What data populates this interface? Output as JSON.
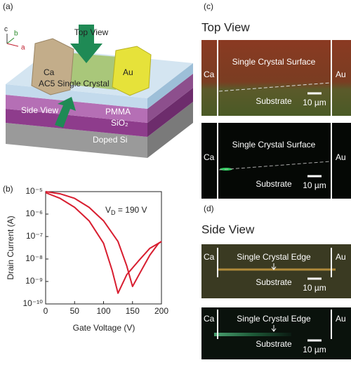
{
  "panel_a": {
    "label": "(a)",
    "axes": [
      "c",
      "b",
      "a"
    ],
    "top_view": "Top View",
    "ca": "Ca",
    "crystal": "AC5 Single Crystal",
    "au": "Au",
    "side_view": "Side View",
    "pmma": "PMMA",
    "sio2": "SiO₂",
    "doped_si": "Doped Si"
  },
  "chart_data": {
    "type": "line",
    "label": "(b)",
    "x_label": "Gate Voltage (V)",
    "y_label": "Drain Current (A)",
    "annotation": {
      "symbol": "V",
      "subscript": "D",
      "text": " = 190 V"
    },
    "log_y": true,
    "xlim": [
      0,
      200
    ],
    "xticks": [
      0,
      50,
      100,
      150,
      200
    ],
    "ylim": [
      1e-10,
      1e-05
    ],
    "yticks": [
      {
        "value": 1e-10,
        "label": "10⁻¹⁰"
      },
      {
        "value": 1e-09,
        "label": "10⁻⁹"
      },
      {
        "value": 1e-08,
        "label": "10⁻⁸"
      },
      {
        "value": 1e-07,
        "label": "10⁻⁷"
      },
      {
        "value": 1e-06,
        "label": "10⁻⁶"
      },
      {
        "value": 1e-05,
        "label": "10⁻⁵"
      }
    ],
    "series": [
      {
        "color": "#d81e30",
        "x": [
          0,
          25,
          50,
          75,
          100,
          115,
          125,
          140,
          160,
          180,
          200
        ],
        "values": [
          9e-06,
          5e-06,
          2e-06,
          5e-07,
          5e-08,
          3e-09,
          3e-10,
          2e-09,
          8e-09,
          3e-08,
          6e-08
        ]
      },
      {
        "color": "#d81e30",
        "x": [
          0,
          25,
          50,
          75,
          100,
          125,
          140,
          150,
          165,
          180,
          195,
          200
        ],
        "values": [
          1e-05,
          8e-06,
          5e-06,
          2e-06,
          5e-07,
          6e-08,
          5e-09,
          6e-10,
          3e-09,
          1.5e-08,
          5e-08,
          6e-08
        ]
      }
    ]
  },
  "panel_c": {
    "label": "(c)",
    "title": "Top View",
    "images": [
      {
        "left": "Ca",
        "right": "Au",
        "top": "Single Crystal Surface",
        "bottom": "Substrate",
        "scale": "10 µm"
      },
      {
        "left": "Ca",
        "right": "Au",
        "top": "Single Crystal Surface",
        "bottom": "Substrate",
        "scale": "10 µm"
      }
    ]
  },
  "panel_d": {
    "label": "(d)",
    "title": "Side View",
    "images": [
      {
        "left": "Ca",
        "right": "Au",
        "top": "Single Crystal Edge",
        "bottom": "Substrate",
        "scale": "10 µm"
      },
      {
        "left": "Ca",
        "right": "Au",
        "top": "Single Crystal Edge",
        "bottom": "Substrate",
        "scale": "10 µm"
      }
    ]
  }
}
